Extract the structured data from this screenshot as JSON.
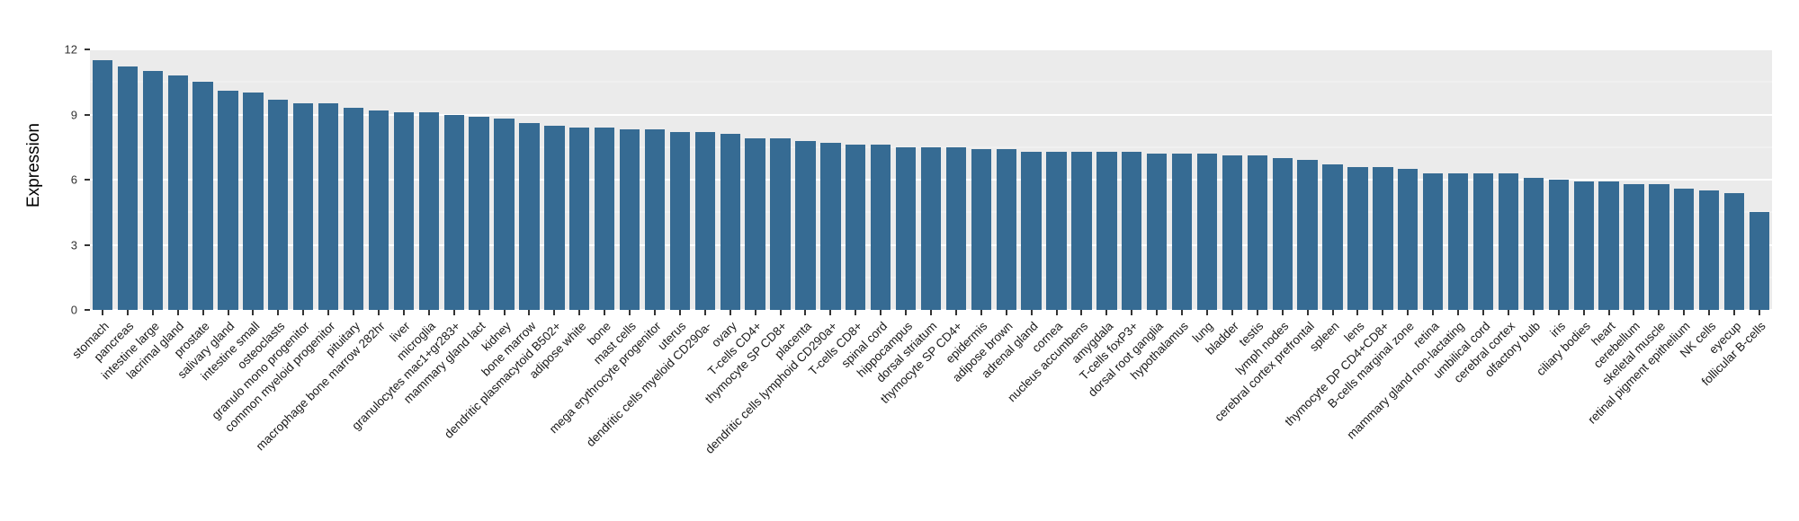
{
  "chart_data": {
    "type": "bar",
    "title": "",
    "xlabel": "",
    "ylabel": "Expression",
    "ylim": [
      0,
      12
    ],
    "y_ticks": [
      0,
      3,
      6,
      9,
      12
    ],
    "y_minor_ticks": [
      1.5,
      4.5,
      7.5,
      10.5
    ],
    "grid": true,
    "legend_position": "none",
    "bar_color": "#366b93",
    "panel_background": "#ebebeb",
    "grid_major_color": "#ffffff",
    "grid_minor_color": "#f5f5f5",
    "axis_text_color": "#333333",
    "categories": [
      "stomach",
      "pancreas",
      "intestine large",
      "lacrimal gland",
      "prostate",
      "salivary gland",
      "intestine small",
      "osteoclasts",
      "granulo mono progenitor",
      "common myeloid progenitor",
      "pituitary",
      "macrophage bone marrow 282hr",
      "liver",
      "microglia",
      "granulocytes mac1+gr283+",
      "mammary gland lact",
      "kidney",
      "bone marrow",
      "dendritic plasmacytoid B502+",
      "adipose white",
      "bone",
      "mast cells",
      "mega erythrocyte progenitor",
      "uterus",
      "dendritic cells myeloid CD290a-",
      "ovary",
      "T-cells CD4+",
      "thymocyte SP CD8+",
      "placenta",
      "dendritic cells lymphoid CD290a+",
      "T-cells CD8+",
      "spinal cord",
      "hippocampus",
      "dorsal striatum",
      "thymocyte SP CD4+",
      "epidermis",
      "adipose brown",
      "adrenal gland",
      "cornea",
      "nucleus accumbens",
      "amygdala",
      "T-cells foxP3+",
      "dorsal root ganglia",
      "hypothalamus",
      "lung",
      "bladder",
      "testis",
      "lymph nodes",
      "cerebral cortex prefrontal",
      "spleen",
      "lens",
      "thymocyte DP CD4+CD8+",
      "B-cells marginal zone",
      "retina",
      "mammary gland non-lactating",
      "umbilical cord",
      "cerebral cortex",
      "olfactory bulb",
      "iris",
      "ciliary bodies",
      "heart",
      "cerebellum",
      "skeletal muscle",
      "retinal pigment epithelium",
      "NK cells",
      "eyecup",
      "follicular B-cells"
    ],
    "values": [
      11.5,
      11.2,
      11.0,
      10.8,
      10.5,
      10.1,
      10.0,
      9.7,
      9.5,
      9.5,
      9.3,
      9.2,
      9.1,
      9.1,
      9.0,
      8.9,
      8.8,
      8.6,
      8.5,
      8.4,
      8.4,
      8.3,
      8.3,
      8.2,
      8.2,
      8.1,
      7.9,
      7.9,
      7.8,
      7.7,
      7.6,
      7.6,
      7.5,
      7.5,
      7.5,
      7.4,
      7.4,
      7.3,
      7.3,
      7.3,
      7.3,
      7.3,
      7.2,
      7.2,
      7.2,
      7.1,
      7.1,
      7.0,
      6.9,
      6.7,
      6.6,
      6.6,
      6.5,
      6.3,
      6.3,
      6.3,
      6.3,
      6.1,
      6.0,
      5.9,
      5.9,
      5.8,
      5.8,
      5.6,
      5.5,
      5.4,
      4.5
    ]
  }
}
